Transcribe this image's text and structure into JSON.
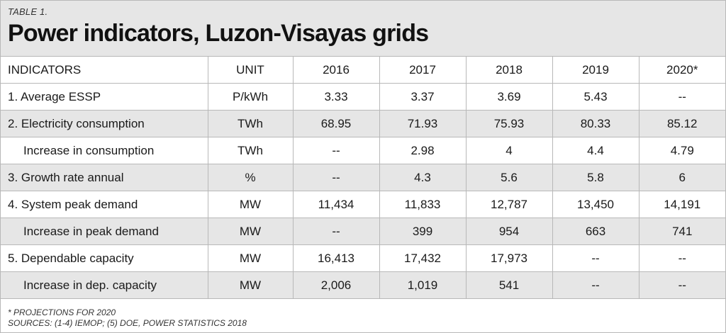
{
  "header": {
    "eyebrow": "TABLE 1.",
    "title": "Power indicators, Luzon-Visayas grids"
  },
  "table": {
    "columns": {
      "indicator": "INDICATORS",
      "unit": "UNIT",
      "years": [
        "2016",
        "2017",
        "2018",
        "2019",
        "2020*"
      ]
    },
    "rows": [
      {
        "indicator": "1. Average ESSP",
        "sub": false,
        "unit": "P/kWh",
        "values": [
          "3.33",
          "3.37",
          "3.69",
          "5.43",
          "--"
        ]
      },
      {
        "indicator": "2. Electricity consumption",
        "sub": false,
        "unit": "TWh",
        "values": [
          "68.95",
          "71.93",
          "75.93",
          "80.33",
          "85.12"
        ]
      },
      {
        "indicator": "Increase in consumption",
        "sub": true,
        "unit": "TWh",
        "values": [
          "--",
          "2.98",
          "4",
          "4.4",
          "4.79"
        ]
      },
      {
        "indicator": "3. Growth rate annual",
        "sub": false,
        "unit": "%",
        "values": [
          "--",
          "4.3",
          "5.6",
          "5.8",
          "6"
        ]
      },
      {
        "indicator": "4. System peak demand",
        "sub": false,
        "unit": "MW",
        "values": [
          "11,434",
          "11,833",
          "12,787",
          "13,450",
          "14,191"
        ]
      },
      {
        "indicator": "Increase in peak demand",
        "sub": true,
        "unit": "MW",
        "values": [
          "--",
          "399",
          "954",
          "663",
          "741"
        ]
      },
      {
        "indicator": "5. Dependable capacity",
        "sub": false,
        "unit": "MW",
        "values": [
          "16,413",
          "17,432",
          "17,973",
          "--",
          "--"
        ]
      },
      {
        "indicator": "Increase in dep. capacity",
        "sub": true,
        "unit": "MW",
        "values": [
          "2,006",
          "1,019",
          "541",
          "--",
          "--"
        ]
      }
    ]
  },
  "footer": {
    "note": "* PROJECTIONS FOR 2020",
    "sources": "SOURCES: (1-4) IEMOP; (5) DOE, POWER STATISTICS 2018"
  }
}
